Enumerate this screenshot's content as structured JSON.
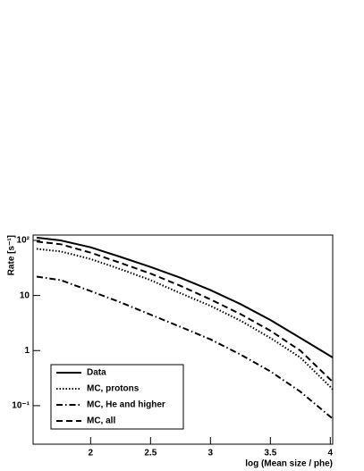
{
  "chart_data": {
    "type": "line",
    "xlabel": "log (Mean size / phe)",
    "ylabel": "Rate [s⁻¹]",
    "x": [
      1.55,
      1.75,
      2.0,
      2.25,
      2.5,
      2.75,
      3.0,
      3.25,
      3.5,
      3.75,
      4.02
    ],
    "series": [
      {
        "name": "Data",
        "color": "#000000",
        "style": "solid",
        "values": [
          112,
          100,
          75,
          50,
          33,
          21,
          12.5,
          7,
          3.6,
          1.7,
          0.75
        ]
      },
      {
        "name": "MC, protons",
        "color": "#000000",
        "style": "dotted",
        "values": [
          70,
          63,
          46,
          30,
          19,
          11,
          6.5,
          3.5,
          1.7,
          0.75,
          0.2
        ]
      },
      {
        "name": "MC, He and higher",
        "color": "#000000",
        "style": "dashdot",
        "values": [
          22,
          19,
          12,
          7.5,
          4.5,
          2.7,
          1.6,
          0.85,
          0.42,
          0.18,
          0.058
        ]
      },
      {
        "name": "MC, all",
        "color": "#000000",
        "style": "dashed",
        "values": [
          95,
          85,
          60,
          39,
          25,
          15,
          8.5,
          4.6,
          2.3,
          1.0,
          0.27
        ]
      }
    ],
    "xlim": [
      1.52,
      4.02
    ],
    "xticks": [
      2,
      2.5,
      3,
      3.5,
      4
    ],
    "ylim": [
      0.02,
      125
    ],
    "ylog": true,
    "yticks": [
      {
        "value": 0.1,
        "label": "10⁻¹"
      },
      1,
      10,
      {
        "value": 100,
        "label": "10²"
      }
    ],
    "legend": "lower left"
  }
}
